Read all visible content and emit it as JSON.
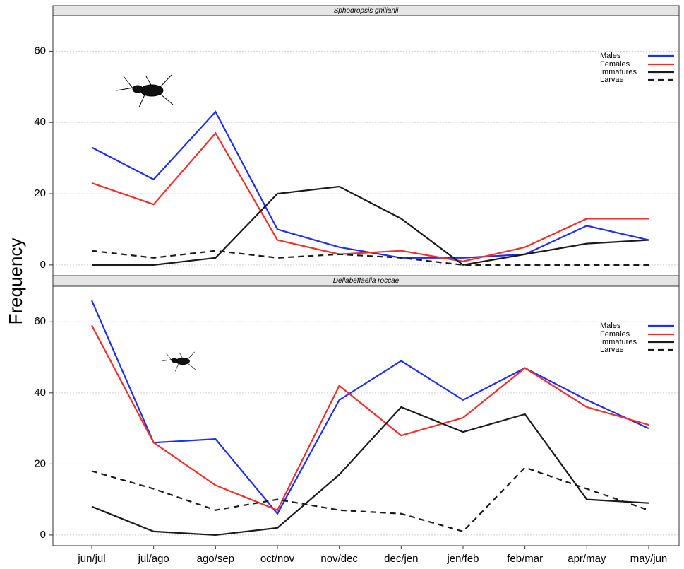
{
  "chart_data": [
    {
      "type": "line",
      "title": "Sphodropsis ghilianii",
      "y_label": "Frequency",
      "ylim": [
        -3,
        70
      ],
      "yticks": [
        0,
        20,
        40,
        60
      ],
      "grid": true,
      "legend": "top-right",
      "series": [
        {
          "name": "Males",
          "color": "#1f2ff0",
          "style": "solid",
          "values": [
            33,
            24,
            43,
            10,
            5,
            2,
            2,
            3,
            11,
            7
          ]
        },
        {
          "name": "Females",
          "color": "#f0302a",
          "style": "solid",
          "values": [
            23,
            17,
            37,
            7,
            3,
            4,
            1,
            5,
            13,
            13
          ]
        },
        {
          "name": "Immatures",
          "color": "#1a1a1a",
          "style": "solid",
          "values": [
            0,
            0,
            2,
            20,
            22,
            13,
            0,
            3,
            6,
            7
          ]
        },
        {
          "name": "Larvae",
          "color": "#1a1a1a",
          "style": "dashed",
          "values": [
            4,
            2,
            4,
            2,
            3,
            2,
            0,
            0,
            0,
            0
          ]
        }
      ]
    },
    {
      "type": "line",
      "title": "Dellabeffaella roccae",
      "categories": [
        "jun/jul",
        "jul/ago",
        "ago/sep",
        "oct/nov",
        "nov/dec",
        "dec/jen",
        "jen/feb",
        "feb/mar",
        "apr/may",
        "may/jun"
      ],
      "ylim": [
        -3,
        70
      ],
      "yticks": [
        0,
        20,
        40,
        60
      ],
      "grid": true,
      "legend": "top-right",
      "series": [
        {
          "name": "Males",
          "color": "#1f2ff0",
          "style": "solid",
          "values": [
            66,
            26,
            27,
            6,
            38,
            49,
            38,
            47,
            38,
            30
          ]
        },
        {
          "name": "Females",
          "color": "#f0302a",
          "style": "solid",
          "values": [
            59,
            26,
            14,
            7,
            42,
            28,
            33,
            47,
            36,
            31
          ]
        },
        {
          "name": "Immatures",
          "color": "#1a1a1a",
          "style": "solid",
          "values": [
            8,
            1,
            0,
            2,
            17,
            36,
            29,
            34,
            10,
            9
          ]
        },
        {
          "name": "Larvae",
          "color": "#1a1a1a",
          "style": "dashed",
          "values": [
            18,
            13,
            7,
            10,
            7,
            6,
            1,
            19,
            13,
            7
          ]
        }
      ]
    }
  ]
}
